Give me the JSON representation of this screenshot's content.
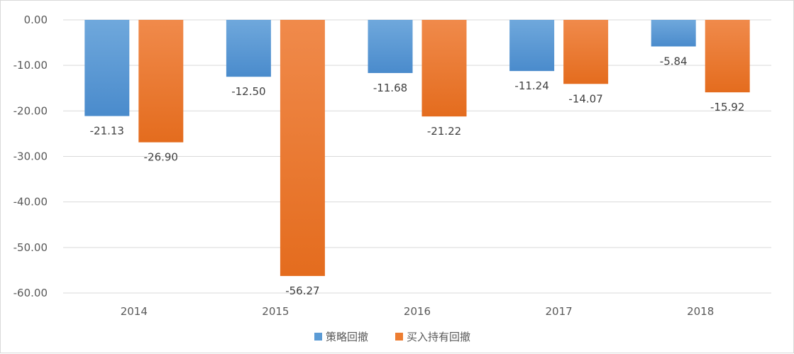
{
  "chart_data": {
    "type": "bar",
    "categories": [
      "2014",
      "2015",
      "2016",
      "2017",
      "2018"
    ],
    "series": [
      {
        "name": "策略回撤",
        "values": [
          -21.13,
          -12.5,
          -11.68,
          -11.24,
          -5.84
        ],
        "labels": [
          "-21.13",
          "-12.50",
          "-11.68",
          "-11.24",
          "-5.84"
        ],
        "color": "#5b9bd5"
      },
      {
        "name": "买入持有回撤",
        "values": [
          -26.9,
          -56.27,
          -21.22,
          -14.07,
          -15.92
        ],
        "labels": [
          "-26.90",
          "-56.27",
          "-21.22",
          "-14.07",
          "-15.92"
        ],
        "color": "#ed7d31"
      }
    ],
    "ylim": [
      -60,
      0
    ],
    "yticks": [
      0,
      -10,
      -20,
      -30,
      -40,
      -50,
      -60
    ],
    "ytick_labels": [
      "0.00",
      "-10.00",
      "-20.00",
      "-30.00",
      "-40.00",
      "-50.00",
      "-60.00"
    ],
    "title": "",
    "xlabel": "",
    "ylabel": "",
    "grid": true,
    "legend_position": "bottom"
  }
}
